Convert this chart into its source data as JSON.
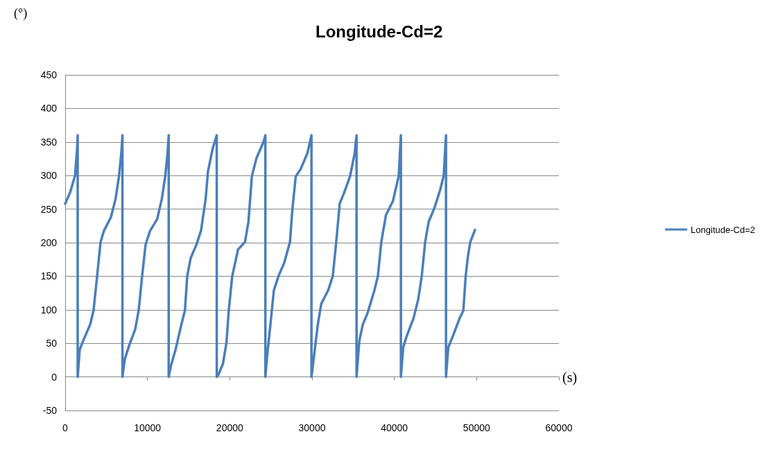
{
  "chart_data": {
    "type": "line",
    "title": "Longitude-Cd=2",
    "xlabel": "(s)",
    "ylabel": "(°)",
    "xlim": [
      0,
      60000
    ],
    "xticks": [
      0,
      10000,
      20000,
      30000,
      40000,
      50000,
      60000
    ],
    "ylim": [
      -50,
      450
    ],
    "yticks": [
      -50,
      0,
      50,
      100,
      150,
      200,
      250,
      300,
      350,
      400,
      450
    ],
    "grid": "y",
    "legend": "right",
    "marker": "none",
    "line_style": "solid",
    "series": [
      {
        "name": "Longitude-Cd=2",
        "color": "#4a7ebb",
        "x": [
          0,
          600,
          1200,
          1450,
          1520,
          1520,
          1770,
          2190,
          3030,
          3450,
          3880,
          4300,
          4720,
          5560,
          6120,
          6540,
          6820,
          6960,
          6960,
          7250,
          7810,
          8510,
          8930,
          9350,
          9770,
          10330,
          11180,
          11740,
          12160,
          12440,
          12580,
          12580,
          12860,
          13420,
          14120,
          14550,
          14830,
          15250,
          15950,
          16510,
          17070,
          17350,
          17920,
          18420,
          18420,
          18620,
          19180,
          19600,
          19880,
          20300,
          21010,
          21850,
          22270,
          22690,
          23250,
          24100,
          24330,
          24330,
          24510,
          24940,
          25360,
          25920,
          26620,
          27320,
          27600,
          28020,
          28590,
          29430,
          29930,
          29930,
          30270,
          30700,
          31120,
          31960,
          32520,
          32940,
          33360,
          33920,
          34620,
          35180,
          35410,
          35410,
          35750,
          36170,
          36740,
          37580,
          38000,
          38420,
          38980,
          39830,
          40530,
          40800,
          40800,
          41080,
          41510,
          42350,
          42910,
          43330,
          43750,
          44170,
          44880,
          45580,
          46000,
          46280,
          46280,
          46560,
          47120,
          47960,
          48390,
          48670,
          48950,
          49230,
          49800
        ],
        "values": [
          258,
          275,
          300,
          340,
          360,
          0,
          41,
          54,
          78,
          99,
          150,
          201,
          218,
          238,
          265,
          299,
          333,
          360,
          0,
          27,
          48,
          71,
          99,
          150,
          197,
          218,
          235,
          265,
          299,
          333,
          360,
          0,
          17,
          41,
          78,
          99,
          150,
          177,
          197,
          218,
          265,
          306,
          340,
          360,
          0,
          3,
          20,
          51,
          99,
          150,
          190,
          201,
          231,
          299,
          326,
          350,
          360,
          0,
          27,
          78,
          129,
          150,
          170,
          201,
          248,
          299,
          309,
          333,
          360,
          0,
          34,
          78,
          109,
          129,
          150,
          201,
          258,
          275,
          299,
          333,
          360,
          0,
          54,
          78,
          95,
          129,
          150,
          201,
          241,
          262,
          299,
          360,
          0,
          44,
          61,
          88,
          116,
          150,
          201,
          231,
          252,
          279,
          300,
          360,
          0,
          44,
          61,
          88,
          99,
          150,
          180,
          201,
          219
        ]
      }
    ]
  }
}
